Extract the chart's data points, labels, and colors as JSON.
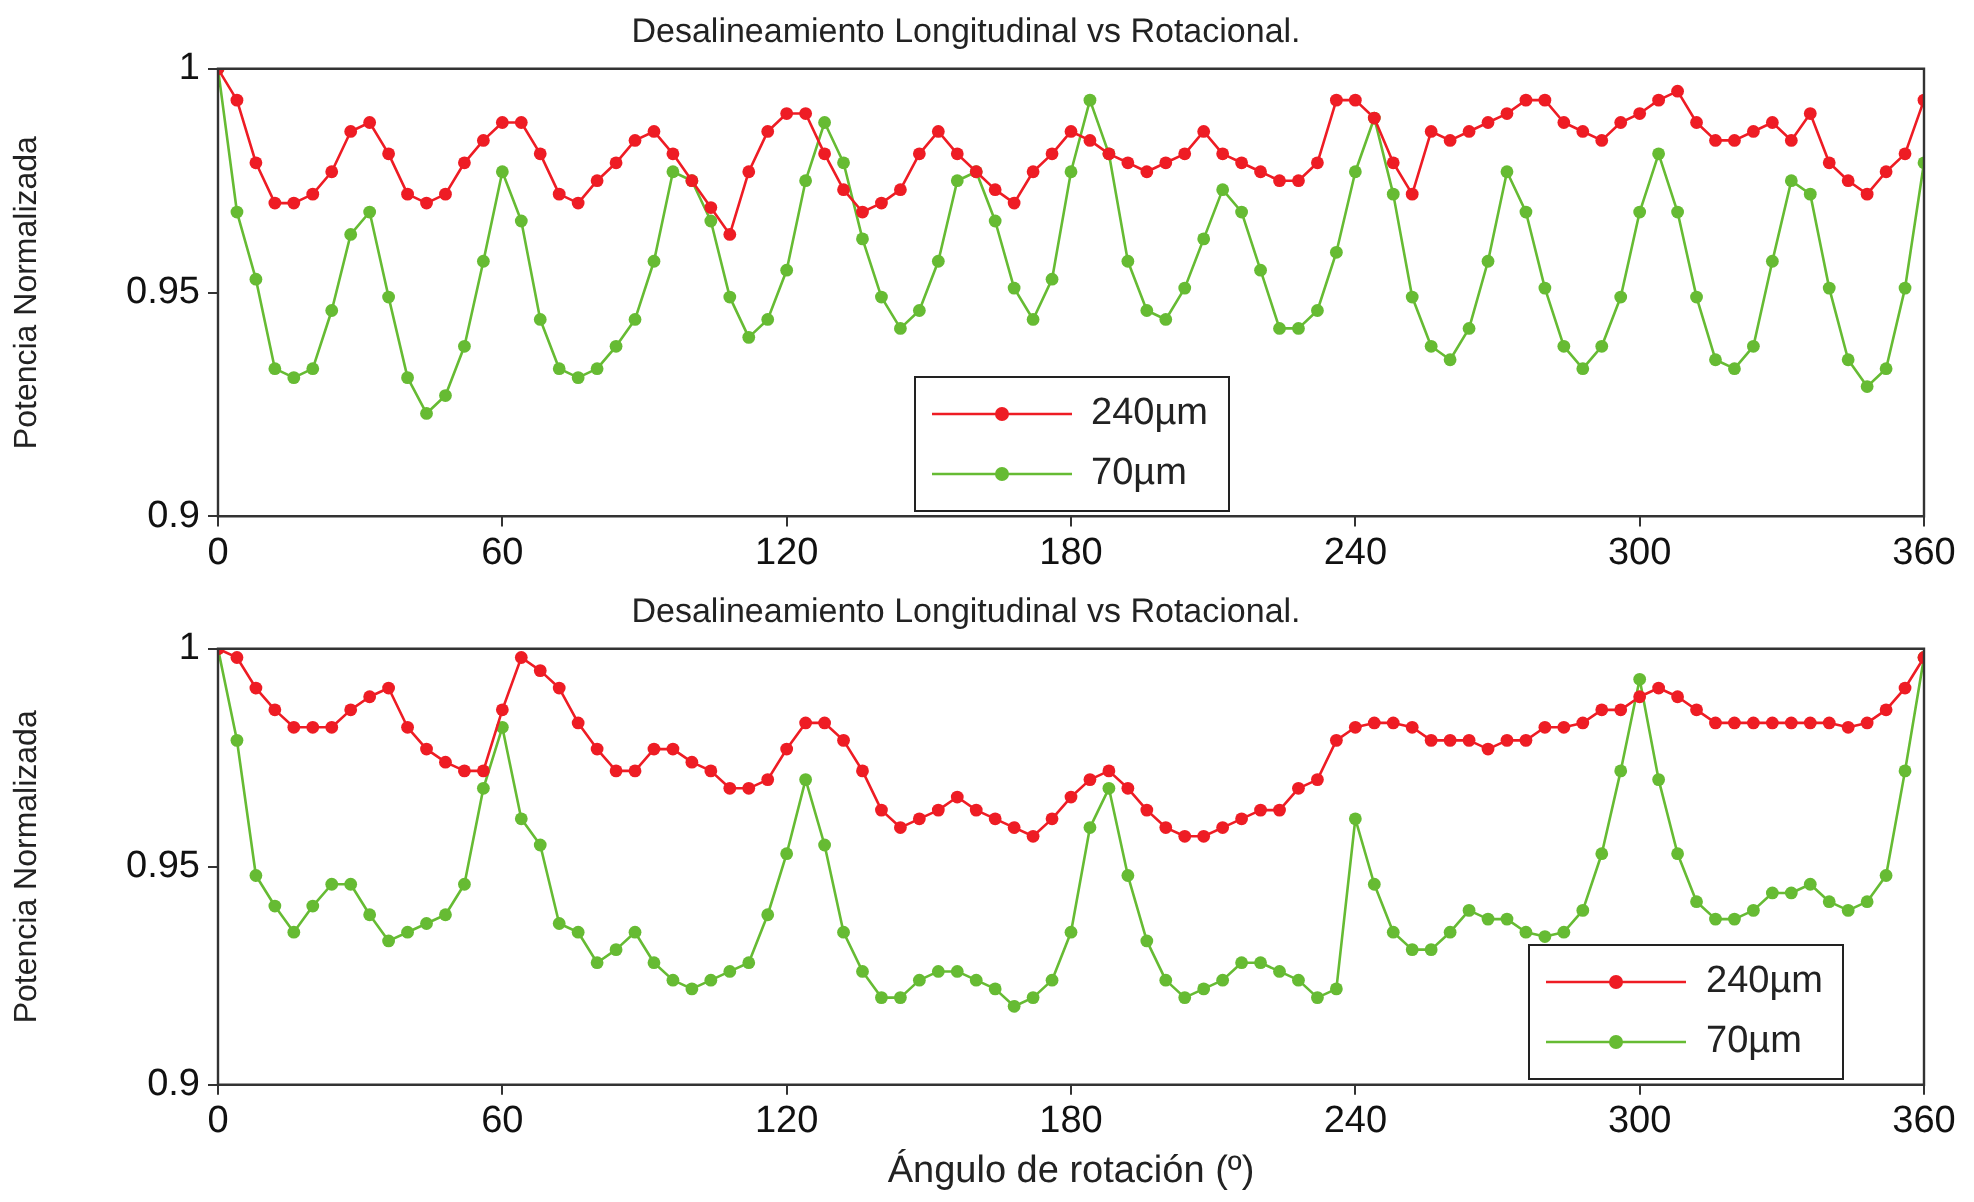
{
  "chart_data": [
    {
      "type": "line",
      "title": "Desalineamiento Longitudinal vs Rotacional.",
      "ylabel": "Potencia Normalizada",
      "x": [
        0,
        4,
        8,
        12,
        16,
        20,
        24,
        28,
        32,
        36,
        40,
        44,
        48,
        52,
        56,
        60,
        64,
        68,
        72,
        76,
        80,
        84,
        88,
        92,
        96,
        100,
        104,
        108,
        112,
        116,
        120,
        124,
        128,
        132,
        136,
        140,
        144,
        148,
        152,
        156,
        160,
        164,
        168,
        172,
        176,
        180,
        184,
        188,
        192,
        196,
        200,
        204,
        208,
        212,
        216,
        220,
        224,
        228,
        232,
        236,
        240,
        244,
        248,
        252,
        256,
        260,
        264,
        268,
        272,
        276,
        280,
        284,
        288,
        292,
        296,
        300,
        304,
        308,
        312,
        316,
        320,
        324,
        328,
        332,
        336,
        340,
        344,
        348,
        352,
        356,
        360
      ],
      "series": [
        {
          "name": "240µm",
          "color": "#ee1c24",
          "values": [
            1.0,
            0.993,
            0.979,
            0.97,
            0.97,
            0.972,
            0.977,
            0.986,
            0.988,
            0.981,
            0.972,
            0.97,
            0.972,
            0.979,
            0.984,
            0.988,
            0.988,
            0.981,
            0.972,
            0.97,
            0.975,
            0.979,
            0.984,
            0.986,
            0.981,
            0.975,
            0.969,
            0.963,
            0.977,
            0.986,
            0.99,
            0.99,
            0.981,
            0.973,
            0.968,
            0.97,
            0.973,
            0.981,
            0.986,
            0.981,
            0.977,
            0.973,
            0.97,
            0.977,
            0.981,
            0.986,
            0.984,
            0.981,
            0.979,
            0.977,
            0.979,
            0.981,
            0.986,
            0.981,
            0.979,
            0.977,
            0.975,
            0.975,
            0.979,
            0.993,
            0.993,
            0.989,
            0.979,
            0.972,
            0.986,
            0.984,
            0.986,
            0.988,
            0.99,
            0.993,
            0.993,
            0.988,
            0.986,
            0.984,
            0.988,
            0.99,
            0.993,
            0.995,
            0.988,
            0.984,
            0.984,
            0.986,
            0.988,
            0.984,
            0.99,
            0.979,
            0.975,
            0.972,
            0.977,
            0.981,
            0.993
          ]
        },
        {
          "name": "70µm",
          "color": "#66bb33",
          "values": [
            1.0,
            0.968,
            0.953,
            0.933,
            0.931,
            0.933,
            0.946,
            0.963,
            0.968,
            0.949,
            0.931,
            0.923,
            0.927,
            0.938,
            0.957,
            0.977,
            0.966,
            0.944,
            0.933,
            0.931,
            0.933,
            0.938,
            0.944,
            0.957,
            0.977,
            0.975,
            0.966,
            0.949,
            0.94,
            0.944,
            0.955,
            0.975,
            0.988,
            0.979,
            0.962,
            0.949,
            0.942,
            0.946,
            0.957,
            0.975,
            0.977,
            0.966,
            0.951,
            0.944,
            0.953,
            0.977,
            0.993,
            0.981,
            0.957,
            0.946,
            0.944,
            0.951,
            0.962,
            0.973,
            0.968,
            0.955,
            0.942,
            0.942,
            0.946,
            0.959,
            0.977,
            0.989,
            0.972,
            0.949,
            0.938,
            0.935,
            0.942,
            0.957,
            0.977,
            0.968,
            0.951,
            0.938,
            0.933,
            0.938,
            0.949,
            0.968,
            0.981,
            0.968,
            0.949,
            0.935,
            0.933,
            0.938,
            0.957,
            0.975,
            0.972,
            0.951,
            0.935,
            0.929,
            0.933,
            0.951,
            0.979
          ]
        }
      ],
      "xlim": [
        0,
        360
      ],
      "xticks": [
        0,
        60,
        120,
        180,
        240,
        300,
        360
      ],
      "ylim": [
        0.9,
        1
      ],
      "yticks": [
        0.9,
        0.95,
        1
      ],
      "grid": false,
      "legend": "bottom",
      "marker": "circle",
      "line_style": "solid"
    },
    {
      "type": "line",
      "title": "Desalineamiento Longitudinal vs Rotacional.",
      "xlabel": "Ángulo de rotación (º)",
      "ylabel": "Potencia Normalizada",
      "x": [
        0,
        4,
        8,
        12,
        16,
        20,
        24,
        28,
        32,
        36,
        40,
        44,
        48,
        52,
        56,
        60,
        64,
        68,
        72,
        76,
        80,
        84,
        88,
        92,
        96,
        100,
        104,
        108,
        112,
        116,
        120,
        124,
        128,
        132,
        136,
        140,
        144,
        148,
        152,
        156,
        160,
        164,
        168,
        172,
        176,
        180,
        184,
        188,
        192,
        196,
        200,
        204,
        208,
        212,
        216,
        220,
        224,
        228,
        232,
        236,
        240,
        244,
        248,
        252,
        256,
        260,
        264,
        268,
        272,
        276,
        280,
        284,
        288,
        292,
        296,
        300,
        304,
        308,
        312,
        316,
        320,
        324,
        328,
        332,
        336,
        340,
        344,
        348,
        352,
        356,
        360
      ],
      "series": [
        {
          "name": "240µm",
          "color": "#ee1c24",
          "values": [
            1.0,
            0.998,
            0.991,
            0.986,
            0.982,
            0.982,
            0.982,
            0.986,
            0.989,
            0.991,
            0.982,
            0.977,
            0.974,
            0.972,
            0.972,
            0.986,
            0.998,
            0.995,
            0.991,
            0.983,
            0.977,
            0.972,
            0.972,
            0.977,
            0.977,
            0.974,
            0.972,
            0.968,
            0.968,
            0.97,
            0.977,
            0.983,
            0.983,
            0.979,
            0.972,
            0.963,
            0.959,
            0.961,
            0.963,
            0.966,
            0.963,
            0.961,
            0.959,
            0.957,
            0.961,
            0.966,
            0.97,
            0.972,
            0.968,
            0.963,
            0.959,
            0.957,
            0.957,
            0.959,
            0.961,
            0.963,
            0.963,
            0.968,
            0.97,
            0.979,
            0.982,
            0.983,
            0.983,
            0.982,
            0.979,
            0.979,
            0.979,
            0.977,
            0.979,
            0.979,
            0.982,
            0.982,
            0.983,
            0.986,
            0.986,
            0.989,
            0.991,
            0.989,
            0.986,
            0.983,
            0.983,
            0.983,
            0.983,
            0.983,
            0.983,
            0.983,
            0.982,
            0.983,
            0.986,
            0.991,
            0.998
          ]
        },
        {
          "name": "70µm",
          "color": "#66bb33",
          "values": [
            1.0,
            0.979,
            0.948,
            0.941,
            0.935,
            0.941,
            0.946,
            0.946,
            0.939,
            0.933,
            0.935,
            0.937,
            0.939,
            0.946,
            0.968,
            0.982,
            0.961,
            0.955,
            0.937,
            0.935,
            0.928,
            0.931,
            0.935,
            0.928,
            0.924,
            0.922,
            0.924,
            0.926,
            0.928,
            0.939,
            0.953,
            0.97,
            0.955,
            0.935,
            0.926,
            0.92,
            0.92,
            0.924,
            0.926,
            0.926,
            0.924,
            0.922,
            0.918,
            0.92,
            0.924,
            0.935,
            0.959,
            0.968,
            0.948,
            0.933,
            0.924,
            0.92,
            0.922,
            0.924,
            0.928,
            0.928,
            0.926,
            0.924,
            0.92,
            0.922,
            0.961,
            0.946,
            0.935,
            0.931,
            0.931,
            0.935,
            0.94,
            0.938,
            0.938,
            0.935,
            0.934,
            0.935,
            0.94,
            0.953,
            0.972,
            0.993,
            0.97,
            0.953,
            0.942,
            0.938,
            0.938,
            0.94,
            0.944,
            0.944,
            0.946,
            0.942,
            0.94,
            0.942,
            0.948,
            0.972,
            0.998
          ]
        }
      ],
      "xlim": [
        0,
        360
      ],
      "xticks": [
        0,
        60,
        120,
        180,
        240,
        300,
        360
      ],
      "ylim": [
        0.9,
        1
      ],
      "yticks": [
        0.9,
        0.95,
        1
      ],
      "grid": false,
      "legend": "bottom right",
      "marker": "circle",
      "line_style": "solid"
    }
  ]
}
